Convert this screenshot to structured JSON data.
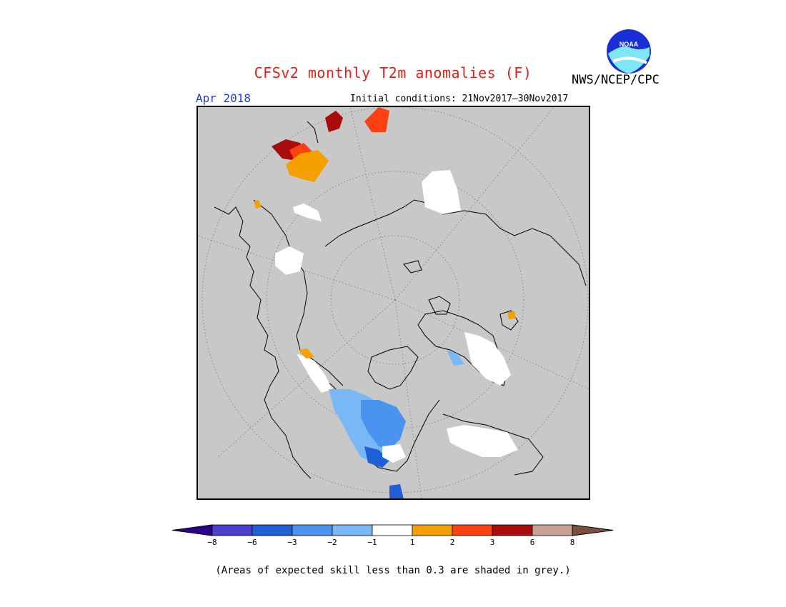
{
  "header": {
    "title": "CFSv2 monthly T2m anomalies (F)",
    "agency": "NWS/NCEP/CPC",
    "logo_text": "NOAA",
    "month": "Apr 2018",
    "initial_conditions": "Initial conditions: 21Nov2017–30Nov2017"
  },
  "map": {
    "projection": "north polar stereographic",
    "background_color": "#c8c8c8",
    "grid": "dotted",
    "region_colors": {
      "minus_3_to_minus_2": "#4a94f0",
      "minus_2_to_minus_1": "#7ab8f5",
      "minus_6_to_minus_3": "#1f60d8",
      "minus_1_to_1": "#ffffff",
      "1_to_2": "#f5a000",
      "2_to_3": "#ff4010",
      "3_to_6": "#a80c0c"
    }
  },
  "colorbar": {
    "levels": [
      "−8",
      "−6",
      "−3",
      "−2",
      "−1",
      "1",
      "2",
      "3",
      "6",
      "8"
    ],
    "colors": [
      "#2a008c",
      "#4a3fd0",
      "#1f60d8",
      "#4a94f0",
      "#7ab8f5",
      "#ffffff",
      "#f5a000",
      "#ff4010",
      "#a80c0c",
      "#c8a092",
      "#7a5040"
    ]
  },
  "footnote": "(Areas of expected skill less than 0.3 are shaded in grey.)"
}
